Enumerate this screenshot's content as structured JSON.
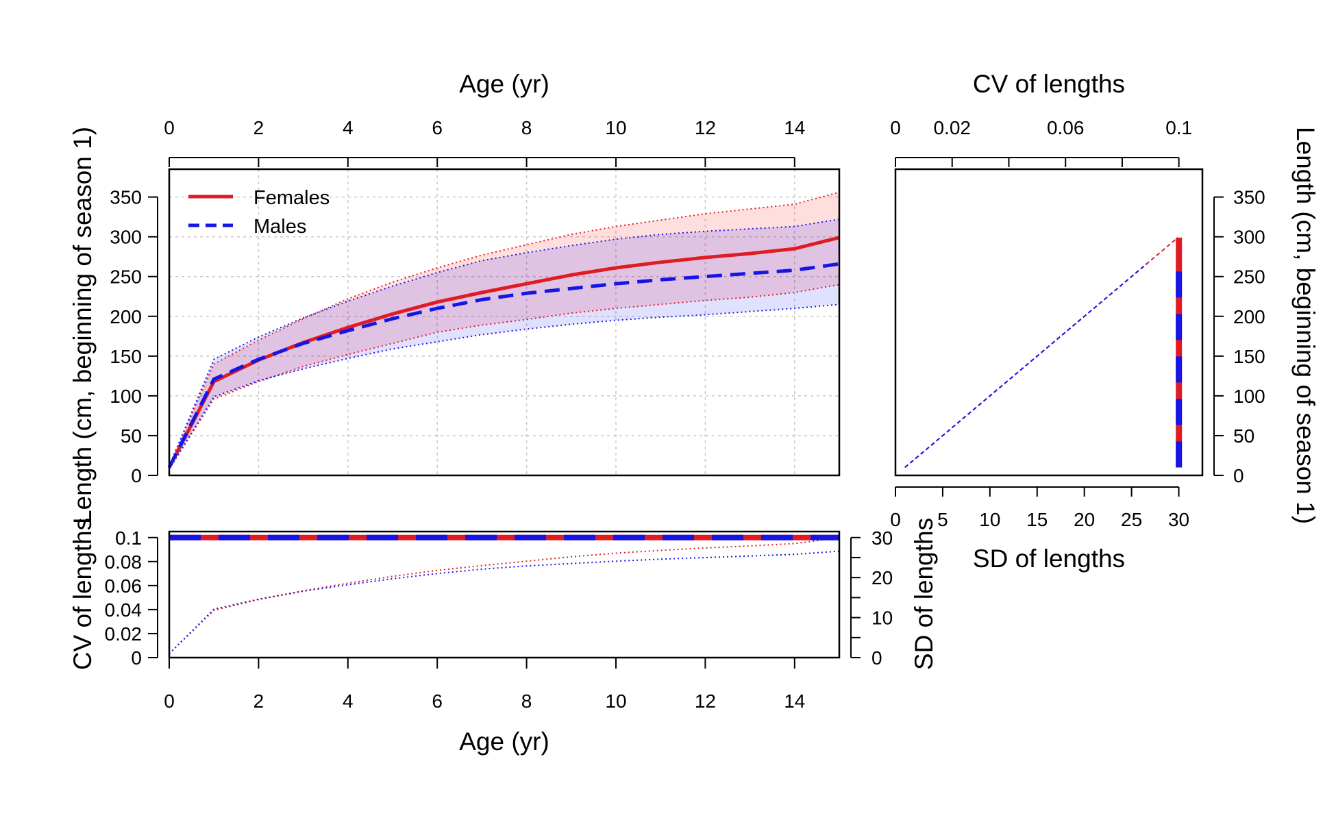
{
  "colors": {
    "female": "#DF1C24",
    "male": "#1515E6",
    "female_fill": "rgba(255,0,0,0.13)",
    "male_fill": "rgba(0,0,255,0.12)",
    "grid": "#C8C8C8",
    "axis": "#000000"
  },
  "legend": {
    "position": "top-left",
    "items": [
      {
        "label": "Females",
        "series": "female",
        "line": "solid"
      },
      {
        "label": "Males",
        "series": "male",
        "line": "dashed"
      }
    ]
  },
  "chart_data": [
    {
      "id": "main",
      "type": "line",
      "title": "",
      "xlabel": "Age (yr)",
      "ylabel": "Length (cm, beginning of season 1)",
      "xlim": [
        0,
        15
      ],
      "ylim": [
        0,
        385
      ],
      "xticks": [
        0,
        2,
        4,
        6,
        8,
        10,
        12,
        14
      ],
      "yticks": [
        0,
        50,
        100,
        150,
        200,
        250,
        300,
        350
      ],
      "grid": true,
      "x": [
        0,
        1,
        2,
        3,
        4,
        5,
        6,
        7,
        8,
        9,
        10,
        11,
        12,
        13,
        14,
        15
      ],
      "series": [
        {
          "name": "Females",
          "key": "female",
          "mean": [
            10,
            118,
            145,
            167,
            186,
            203,
            218,
            230,
            241,
            252,
            261,
            268,
            274,
            279,
            285,
            299
          ],
          "upper": [
            12,
            140,
            170,
            197,
            222,
            243,
            261,
            277,
            290,
            303,
            313,
            321,
            329,
            335,
            341,
            356
          ],
          "lower": [
            8,
            96,
            118,
            137,
            152,
            166,
            180,
            189,
            196,
            204,
            210,
            215,
            220,
            224,
            230,
            240
          ]
        },
        {
          "name": "Males",
          "key": "male",
          "mean": [
            10,
            121,
            146,
            166,
            182,
            197,
            210,
            221,
            229,
            235,
            241,
            246,
            250,
            254,
            258,
            266
          ],
          "upper": [
            12,
            146,
            174,
            198,
            219,
            238,
            255,
            270,
            280,
            289,
            297,
            303,
            307,
            310,
            313,
            322
          ],
          "lower": [
            8,
            99,
            119,
            134,
            147,
            159,
            168,
            177,
            184,
            190,
            195,
            199,
            202,
            206,
            210,
            215
          ]
        }
      ]
    },
    {
      "id": "cv",
      "type": "line",
      "xlabel": "Age (yr)",
      "ylabel": "CV of lengths",
      "ylabel_right": "SD of lengths",
      "xlim": [
        0,
        15
      ],
      "ylim": [
        0,
        0.105
      ],
      "ylim_right": [
        0,
        31.5
      ],
      "xticks": [
        0,
        2,
        4,
        6,
        8,
        10,
        12,
        14
      ],
      "yticks": [
        0,
        0.02,
        0.04,
        0.06,
        0.08,
        0.1
      ],
      "ytick_labels": [
        "0",
        "0.02",
        "0.04",
        "0.06",
        "0.08",
        "0.1"
      ],
      "yticks_right": [
        0,
        10,
        20,
        30
      ],
      "yticks_right_minor": [
        5,
        15,
        25
      ],
      "x": [
        0,
        1,
        2,
        3,
        4,
        5,
        6,
        7,
        8,
        9,
        10,
        11,
        12,
        13,
        14,
        15
      ],
      "cv_constant": 0.1,
      "series": [
        {
          "name": "Females",
          "key": "female",
          "sd": [
            1,
            11.8,
            14.5,
            16.7,
            18.6,
            20.3,
            21.8,
            23.0,
            24.1,
            25.2,
            26.1,
            26.8,
            27.4,
            27.9,
            28.5,
            29.9
          ]
        },
        {
          "name": "Males",
          "key": "male",
          "sd": [
            1,
            12.1,
            14.6,
            16.6,
            18.2,
            19.7,
            21.0,
            22.1,
            22.9,
            23.5,
            24.1,
            24.6,
            25.0,
            25.4,
            25.8,
            26.6
          ]
        }
      ]
    },
    {
      "id": "side",
      "type": "line",
      "xlabel_top": "CV of lengths",
      "xlabel_bottom": "SD of lengths",
      "ylabel": "Length (cm, beginning of season 1)",
      "xlim_bottom": [
        0,
        32.5
      ],
      "xlim_top": [
        0,
        0.1083
      ],
      "ylim": [
        0,
        385
      ],
      "xticks_bottom": [
        0,
        5,
        10,
        15,
        20,
        25,
        30
      ],
      "xticks_top": [
        0,
        0.02,
        0.06,
        0.1
      ],
      "xtick_labels_top": [
        "0",
        "0.02",
        "0.06",
        "0.1"
      ],
      "xticks_top_minor": [
        0.04,
        0.08
      ],
      "yticks": [
        0,
        50,
        100,
        150,
        200,
        250,
        300,
        350
      ],
      "cv_constant": 0.1,
      "series": [
        {
          "name": "Females",
          "key": "female",
          "length_range": [
            10,
            299
          ]
        },
        {
          "name": "Males",
          "key": "male",
          "length_range": [
            10,
            266
          ]
        }
      ]
    }
  ]
}
